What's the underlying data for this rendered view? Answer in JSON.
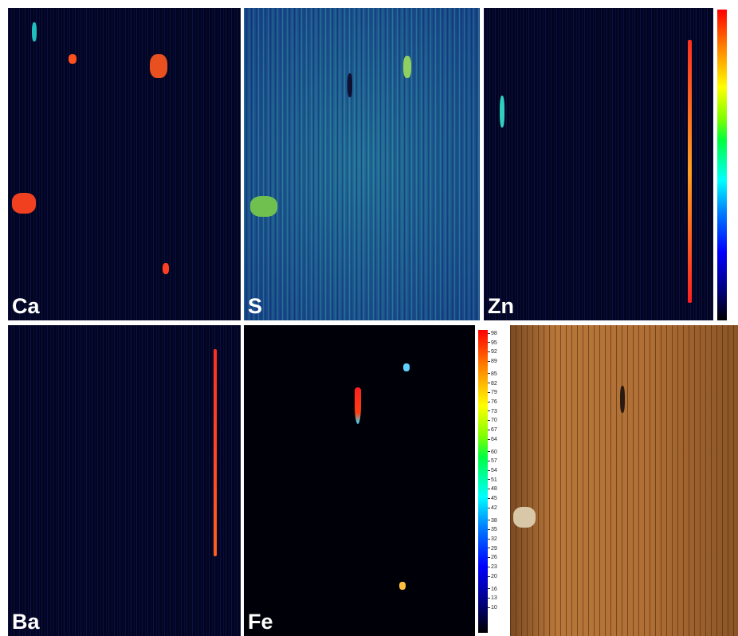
{
  "panels": [
    {
      "label": "Ca"
    },
    {
      "label": "S"
    },
    {
      "label": "Zn"
    },
    {
      "label": "Ba"
    },
    {
      "label": "Fe"
    }
  ],
  "colorbar": {
    "ticks": [
      98,
      95,
      92,
      89,
      85,
      82,
      79,
      76,
      73,
      70,
      67,
      64,
      60,
      57,
      54,
      51,
      48,
      45,
      42,
      38,
      35,
      32,
      29,
      26,
      23,
      20,
      16,
      13,
      10
    ]
  }
}
